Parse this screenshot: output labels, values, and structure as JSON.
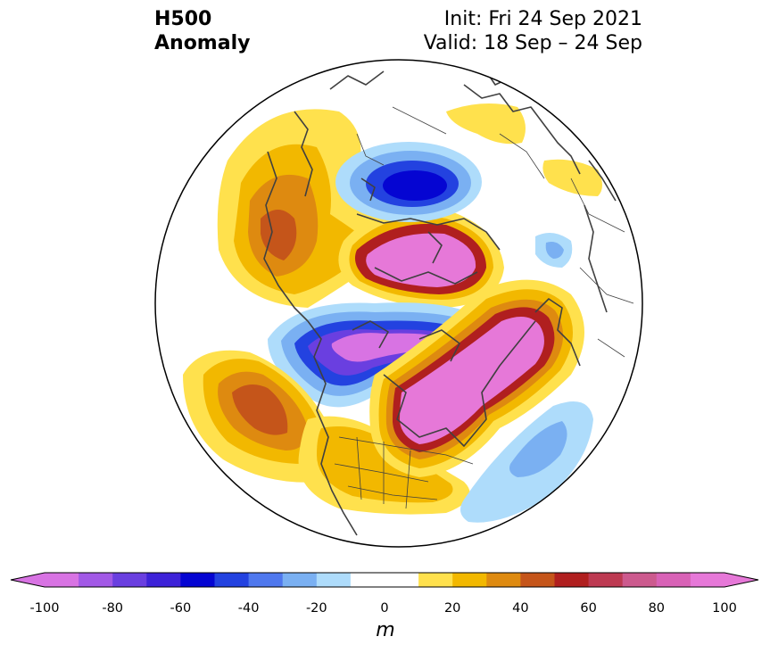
{
  "title": {
    "left_line1": "H500",
    "left_line2": "Anomaly",
    "right_line1": "Init: Fri 24 Sep 2021",
    "right_line2": "Valid: 18 Sep – 24 Sep"
  },
  "colorbar": {
    "unit": "m",
    "tick_labels": [
      "-100",
      "-80",
      "-60",
      "-40",
      "-20",
      "0",
      "20",
      "40",
      "60",
      "80",
      "100"
    ],
    "min": -100,
    "max": 100,
    "step": 10,
    "extend": "both",
    "colors": [
      "#d873e3",
      "#a259e6",
      "#6a3fe0",
      "#3d22d8",
      "#0505d2",
      "#2342e0",
      "#4f78ee",
      "#7ab0f2",
      "#aedcfb",
      "#ffffff",
      "#ffffff",
      "#ffe14d",
      "#f2b800",
      "#de8a10",
      "#c5551a",
      "#b01f1f",
      "#bd3a52",
      "#cc5a8e",
      "#d862b6",
      "#e678d8"
    ],
    "under_color": "#d873e3",
    "over_color": "#e678d8"
  },
  "map": {
    "projection": "north-polar-stereographic",
    "boundary": "circle",
    "features": [
      "coastlines",
      "country-borders",
      "us-state-borders"
    ],
    "regions": [
      {
        "name": "Siberia positive anomaly",
        "peak_value": 50
      },
      {
        "name": "Arctic Ocean positive anomaly",
        "peak_value": 100
      },
      {
        "name": "Barents/Kara negative anomaly",
        "peak_value": -60
      },
      {
        "name": "Canadian Arctic negative anomaly",
        "peak_value": -100
      },
      {
        "name": "North Pacific positive anomaly",
        "peak_value": 50
      },
      {
        "name": "Eastern Canada / Greenland positive anomaly",
        "peak_value": 100
      },
      {
        "name": "North Atlantic negative anomaly",
        "peak_value": -30
      },
      {
        "name": "Europe positive anomaly",
        "peak_value": 10
      },
      {
        "name": "Scandinavia negative anomaly",
        "peak_value": -20
      }
    ]
  }
}
